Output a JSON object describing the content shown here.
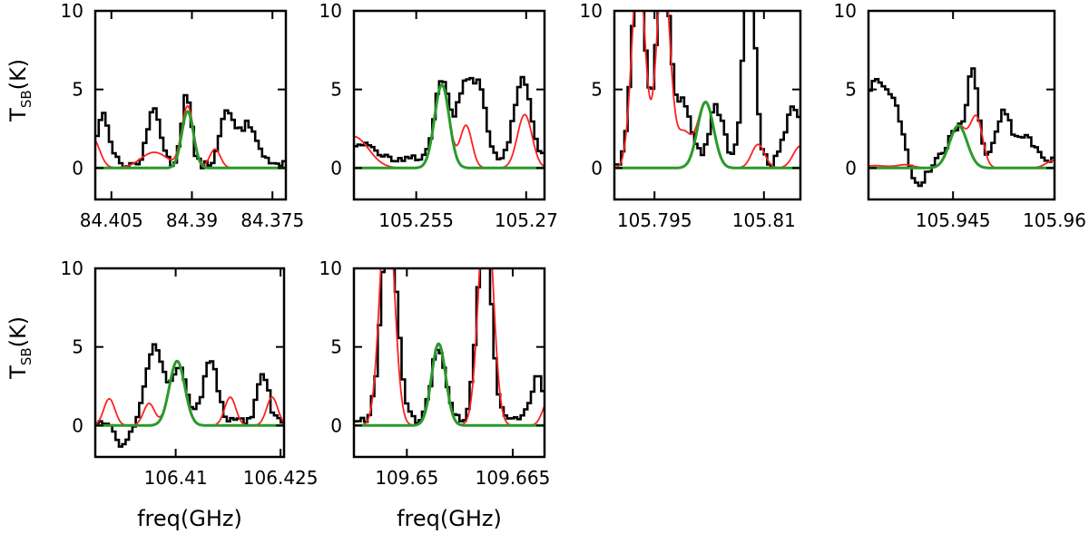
{
  "figure": {
    "ylabel_main": "T",
    "ylabel_sub": "SB",
    "ylabel_tail": "(K)",
    "xlabel": "freq(GHz)"
  },
  "colors": {
    "observed": "#000000",
    "model_total": "#ff2020",
    "model_species": "#2a9a2a"
  },
  "chart_data": [
    {
      "type": "line",
      "id": "p1",
      "x_ticks": [
        84.405,
        84.39,
        84.375
      ],
      "x_tick_labels": [
        "84.405",
        "84.39",
        "84.375"
      ],
      "xlim": [
        84.408,
        84.3725
      ],
      "ylim": [
        -2,
        10
      ],
      "y_ticks": [
        0,
        5,
        10
      ],
      "y_tick_labels": [
        "0",
        "5",
        "10"
      ],
      "show_ylabel": true,
      "show_xlabel": false,
      "series": [
        {
          "name": "observed spectrum",
          "color": "#000000",
          "style": "step",
          "baseline": 0.2,
          "noise": 0.25,
          "components": [
            [
              84.4065,
              3.2,
              0.0012
            ],
            [
              84.397,
              3.6,
              0.0012
            ],
            [
              84.391,
              4.4,
              0.0009
            ],
            [
              84.3835,
              3.2,
              0.0012
            ],
            [
              84.3795,
              2.6,
              0.0018
            ]
          ]
        },
        {
          "name": "full model",
          "color": "#ff2020",
          "style": "smooth",
          "components": [
            [
              84.4085,
              1.9,
              0.0013
            ],
            [
              84.397,
              1.0,
              0.0025
            ],
            [
              84.3908,
              3.9,
              0.0011
            ],
            [
              84.3857,
              1.2,
              0.001
            ]
          ]
        },
        {
          "name": "species model",
          "color": "#2a9a2a",
          "style": "smooth",
          "components": [
            [
              84.3908,
              3.6,
              0.0011
            ]
          ]
        }
      ]
    },
    {
      "type": "line",
      "id": "p2",
      "x_ticks": [
        105.255,
        105.27
      ],
      "x_tick_labels": [
        "105.255",
        "105.27"
      ],
      "xlim": [
        105.2465,
        105.2725
      ],
      "ylim": [
        -2,
        10
      ],
      "y_ticks": [
        0,
        5,
        10
      ],
      "y_tick_labels": [
        "0",
        "5",
        "10"
      ],
      "show_ylabel": false,
      "show_xlabel": false,
      "series": [
        {
          "name": "observed spectrum",
          "color": "#000000",
          "style": "step",
          "baseline": 0.6,
          "noise": 0.2,
          "components": [
            [
              105.2585,
              4.8,
              0.001
            ],
            [
              105.2618,
              5.0,
              0.0011
            ],
            [
              105.2638,
              3.6,
              0.0008
            ],
            [
              105.2695,
              5.2,
              0.0011
            ],
            [
              105.2475,
              1.0,
              0.0015
            ]
          ]
        },
        {
          "name": "full model",
          "color": "#ff2020",
          "style": "smooth",
          "components": [
            [
              105.2585,
              5.3,
              0.001
            ],
            [
              105.2618,
              2.7,
              0.0008
            ],
            [
              105.2698,
              3.4,
              0.001
            ],
            [
              105.2465,
              2.0,
              0.002
            ]
          ]
        },
        {
          "name": "species model",
          "color": "#2a9a2a",
          "style": "smooth",
          "components": [
            [
              105.2585,
              5.3,
              0.001
            ]
          ]
        }
      ]
    },
    {
      "type": "line",
      "id": "p3",
      "x_ticks": [
        105.795,
        105.81
      ],
      "x_tick_labels": [
        "105.795",
        "105.81"
      ],
      "xlim": [
        105.7895,
        105.815
      ],
      "ylim": [
        -2,
        10
      ],
      "y_ticks": [
        0,
        5,
        10
      ],
      "y_tick_labels": [
        "0",
        "5",
        "10"
      ],
      "show_ylabel": false,
      "show_xlabel": false,
      "series": [
        {
          "name": "observed spectrum",
          "color": "#000000",
          "style": "step",
          "baseline": 0.3,
          "noise": 0.3,
          "components": [
            [
              105.7928,
              13.0,
              0.0009
            ],
            [
              105.7962,
              13.0,
              0.0009
            ],
            [
              105.799,
              4.0,
              0.0011
            ],
            [
              105.8035,
              3.5,
              0.001
            ],
            [
              105.808,
              13.0,
              0.0008
            ],
            [
              105.814,
              3.8,
              0.001
            ]
          ]
        },
        {
          "name": "full model",
          "color": "#ff2020",
          "style": "smooth",
          "components": [
            [
              105.7928,
              13.0,
              0.0009
            ],
            [
              105.7962,
              13.0,
              0.0009
            ],
            [
              105.799,
              2.2,
              0.001
            ],
            [
              105.802,
              4.2,
              0.0011
            ],
            [
              105.8092,
              1.5,
              0.0009
            ],
            [
              105.815,
              1.4,
              0.001
            ]
          ]
        },
        {
          "name": "species model",
          "color": "#2a9a2a",
          "style": "smooth",
          "components": [
            [
              105.802,
              4.2,
              0.0011
            ]
          ]
        }
      ]
    },
    {
      "type": "line",
      "id": "p4",
      "x_ticks": [
        105.945,
        105.96
      ],
      "x_tick_labels": [
        "105.945",
        "105.96"
      ],
      "xlim": [
        105.9325,
        105.96
      ],
      "ylim": [
        -2,
        10
      ],
      "y_ticks": [
        0,
        5,
        10
      ],
      "y_tick_labels": [
        "0",
        "5",
        "10"
      ],
      "show_ylabel": false,
      "show_xlabel": false,
      "series": [
        {
          "name": "observed spectrum",
          "color": "#000000",
          "style": "step",
          "baseline": 0.6,
          "noise": 0.25,
          "components": [
            [
              105.9335,
              4.8,
              0.0018
            ],
            [
              105.9365,
              2.6,
              0.001
            ],
            [
              105.94,
              -1.6,
              0.0012
            ],
            [
              105.9458,
              2.0,
              0.0014
            ],
            [
              105.948,
              5.3,
              0.0007
            ],
            [
              105.9525,
              2.9,
              0.0012
            ],
            [
              105.956,
              1.2,
              0.0012
            ]
          ]
        },
        {
          "name": "full model",
          "color": "#ff2020",
          "style": "smooth",
          "components": [
            [
              105.9335,
              0.15,
              0.002
            ],
            [
              105.938,
              0.2,
              0.0012
            ],
            [
              105.9458,
              2.7,
              0.0013
            ],
            [
              105.9485,
              3.0,
              0.0009
            ],
            [
              105.96,
              0.5,
              0.0012
            ]
          ]
        },
        {
          "name": "species model",
          "color": "#2a9a2a",
          "style": "smooth",
          "components": [
            [
              105.9458,
              2.7,
              0.0013
            ]
          ]
        }
      ]
    },
    {
      "type": "line",
      "id": "p5",
      "x_ticks": [
        106.41,
        106.425
      ],
      "x_tick_labels": [
        "106.41",
        "106.425"
      ],
      "xlim": [
        106.3985,
        106.4255
      ],
      "ylim": [
        -2,
        10
      ],
      "y_ticks": [
        0,
        5,
        10
      ],
      "y_tick_labels": [
        "0",
        "5",
        "10"
      ],
      "show_ylabel": true,
      "show_xlabel": true,
      "series": [
        {
          "name": "observed spectrum",
          "color": "#000000",
          "style": "step",
          "baseline": 0.2,
          "noise": 0.25,
          "components": [
            [
              106.4025,
              -1.4,
              0.001
            ],
            [
              106.407,
              5.0,
              0.0012
            ],
            [
              106.4105,
              3.6,
              0.0011
            ],
            [
              106.415,
              4.0,
              0.001
            ],
            [
              106.4225,
              3.1,
              0.0008
            ]
          ]
        },
        {
          "name": "full model",
          "color": "#ff2020",
          "style": "smooth",
          "components": [
            [
              106.4005,
              1.7,
              0.0008
            ],
            [
              106.4062,
              1.4,
              0.0008
            ],
            [
              106.4102,
              4.1,
              0.0011
            ],
            [
              106.4178,
              1.8,
              0.0008
            ],
            [
              106.4238,
              1.8,
              0.0008
            ]
          ]
        },
        {
          "name": "species model",
          "color": "#2a9a2a",
          "style": "smooth",
          "components": [
            [
              106.4102,
              4.1,
              0.0011
            ]
          ]
        }
      ]
    },
    {
      "type": "line",
      "id": "p6",
      "x_ticks": [
        109.65,
        109.665
      ],
      "x_tick_labels": [
        "109.65",
        "109.665"
      ],
      "xlim": [
        109.6425,
        109.6695
      ],
      "ylim": [
        -2,
        10
      ],
      "y_ticks": [
        0,
        5,
        10
      ],
      "y_tick_labels": [
        "0",
        "5",
        "10"
      ],
      "show_ylabel": false,
      "show_xlabel": true,
      "series": [
        {
          "name": "observed spectrum",
          "color": "#000000",
          "style": "step",
          "baseline": 0.3,
          "noise": 0.25,
          "components": [
            [
              109.6475,
              13.0,
              0.0011
            ],
            [
              109.6545,
              4.6,
              0.001
            ],
            [
              109.661,
              13.0,
              0.001
            ],
            [
              109.6685,
              2.8,
              0.0009
            ]
          ]
        },
        {
          "name": "full model",
          "color": "#ff2020",
          "style": "smooth",
          "components": [
            [
              109.6472,
              15.0,
              0.001
            ],
            [
              109.6545,
              5.2,
              0.001
            ],
            [
              109.6612,
              15.0,
              0.001
            ],
            [
              109.67,
              1.5,
              0.0008
            ]
          ]
        },
        {
          "name": "species model",
          "color": "#2a9a2a",
          "style": "smooth",
          "components": [
            [
              109.6545,
              5.2,
              0.001
            ]
          ]
        }
      ]
    }
  ]
}
